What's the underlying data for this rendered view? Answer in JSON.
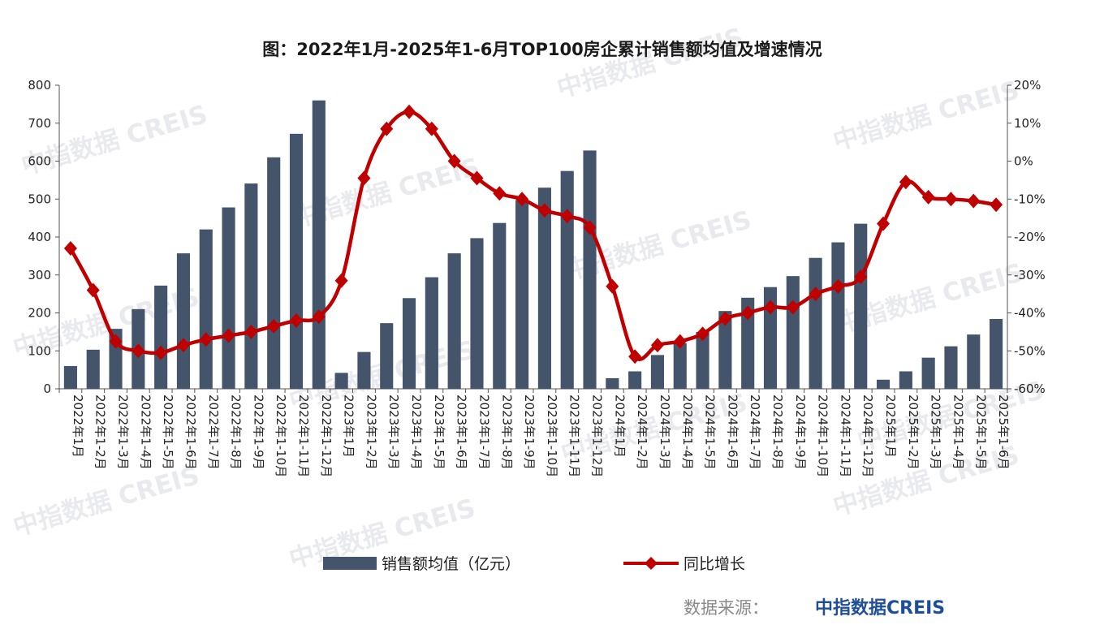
{
  "chart_data": {
    "type": "bar+line",
    "title": "图：2022年1月-2025年1-6月TOP100房企累计销售额均值及增速情况",
    "categories": [
      "2022年1月",
      "2022年1-2月",
      "2022年1-3月",
      "2022年1-4月",
      "2022年1-5月",
      "2022年1-6月",
      "2022年1-7月",
      "2022年1-8月",
      "2022年1-9月",
      "2022年1-10月",
      "2022年1-11月",
      "2022年1-12月",
      "2023年1月",
      "2023年1-2月",
      "2023年1-3月",
      "2023年1-4月",
      "2023年1-5月",
      "2023年1-6月",
      "2023年1-7月",
      "2023年1-8月",
      "2023年1-9月",
      "2023年1-10月",
      "2023年1-11月",
      "2023年1-12月",
      "2024年1月",
      "2024年1-2月",
      "2024年1-3月",
      "2024年1-4月",
      "2024年1-5月",
      "2024年1-6月",
      "2024年1-7月",
      "2024年1-8月",
      "2024年1-9月",
      "2024年1-10月",
      "2024年1-11月",
      "2024年1-12月",
      "2025年1月",
      "2025年1-2月",
      "2025年1-3月",
      "2025年1-4月",
      "2025年1-5月",
      "2025年1-6月"
    ],
    "series": [
      {
        "name": "销售额均值（亿元）",
        "type": "bar",
        "axis": "left",
        "color": "#44546a",
        "values": [
          60,
          103,
          158,
          210,
          272,
          357,
          420,
          478,
          541,
          610,
          672,
          760,
          42,
          97,
          173,
          239,
          294,
          357,
          397,
          437,
          497,
          530,
          574,
          628,
          28,
          46,
          89,
          120,
          150,
          205,
          240,
          268,
          297,
          345,
          386,
          435,
          24,
          46,
          82,
          112,
          143,
          184
        ]
      },
      {
        "name": "同比增长",
        "type": "line",
        "axis": "right",
        "color": "#c00000",
        "values": [
          -23,
          -34,
          -47.5,
          -50,
          -50.5,
          -48.5,
          -47,
          -46,
          -45,
          -43.5,
          -42,
          -41,
          -31.5,
          -4.5,
          8.5,
          13,
          8.5,
          0,
          -4.5,
          -8.5,
          -10,
          -13,
          -14.5,
          -17.5,
          -33,
          -51.5,
          -48.5,
          -47.5,
          -45.5,
          -41.5,
          -40,
          -38.5,
          -38.5,
          -35,
          -33,
          -30.5,
          -16.5,
          -5.5,
          -9.5,
          -10,
          -10.5,
          -11.5
        ]
      }
    ],
    "y_left": {
      "ylim": [
        0,
        800
      ],
      "ticks": [
        "0",
        "100",
        "200",
        "300",
        "400",
        "500",
        "600",
        "700",
        "800"
      ]
    },
    "y_right": {
      "ylim": [
        -60,
        20
      ],
      "ticks": [
        "-60%",
        "-50%",
        "-40%",
        "-30%",
        "-20%",
        "-10%",
        "0%",
        "10%",
        "20%"
      ]
    },
    "grid": false,
    "legend_position": "bottom"
  },
  "legend": {
    "bar_label": "销售额均值（亿元）",
    "line_label": "同比增长"
  },
  "source": {
    "label": "数据来源：",
    "brand": "中指数据CREIS"
  },
  "watermark": "中指数据 CREIS"
}
